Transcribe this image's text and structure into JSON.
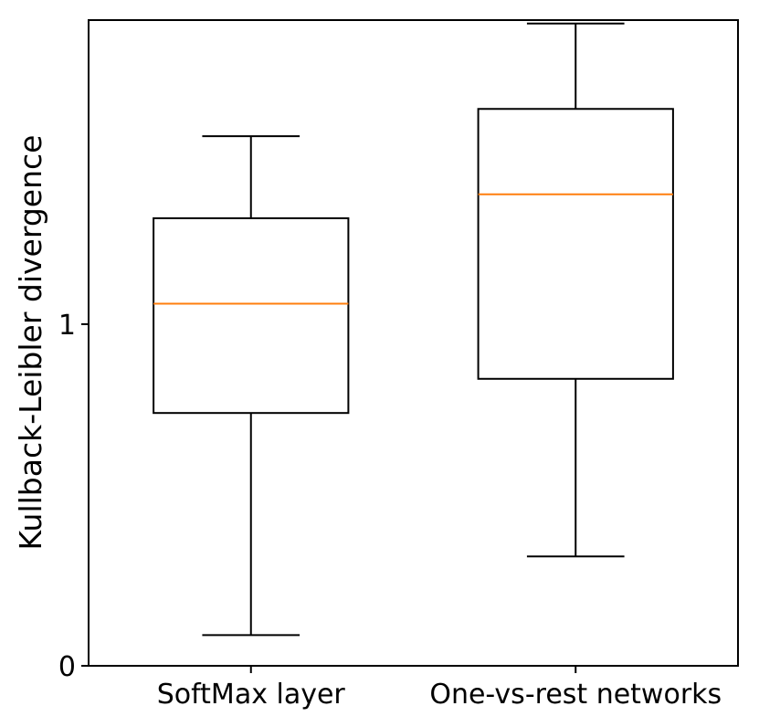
{
  "chart_data": {
    "type": "box",
    "title": "",
    "xlabel": "",
    "ylabel": "Kullback-Leibler divergence",
    "ylim": [
      0,
      1.89
    ],
    "yticks": [
      0,
      1
    ],
    "ytick_labels": [
      "0",
      "1"
    ],
    "categories": [
      "SoftMax layer",
      "One-vs-rest networks"
    ],
    "boxes": [
      {
        "category": "SoftMax layer",
        "whisker_low": 0.09,
        "q1": 0.74,
        "median": 1.06,
        "q3": 1.31,
        "whisker_high": 1.55
      },
      {
        "category": "One-vs-rest networks",
        "whisker_low": 0.32,
        "q1": 0.84,
        "median": 1.38,
        "q3": 1.63,
        "whisker_high": 1.88
      }
    ],
    "grid": false,
    "colors": {
      "box": "#000000",
      "median": "#ff7f0e"
    }
  }
}
